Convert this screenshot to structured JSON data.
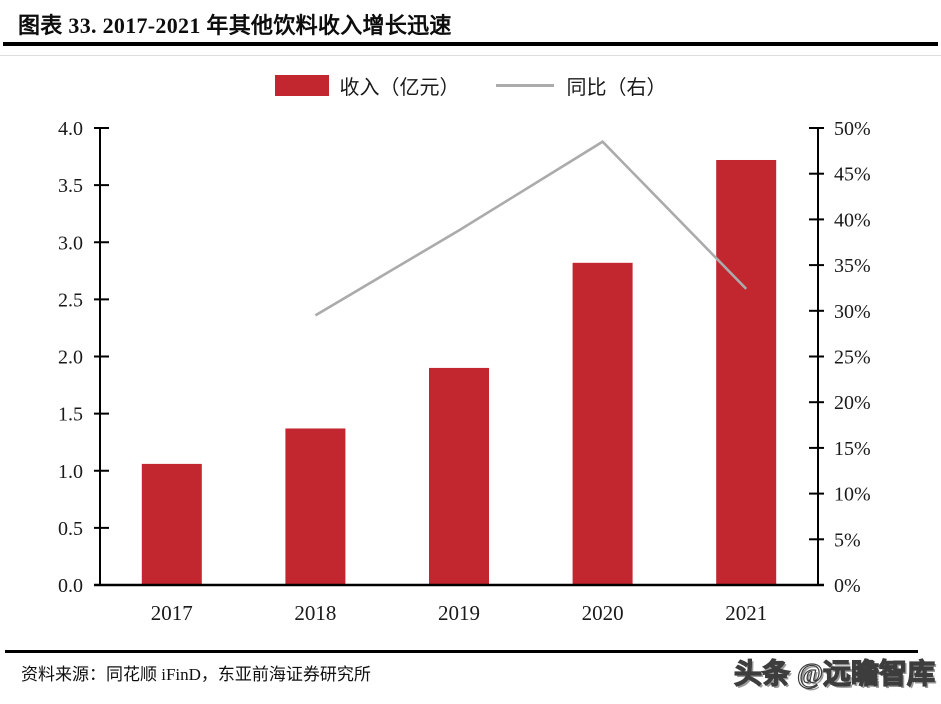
{
  "title": "图表 33. 2017-2021 年其他饮料收入增长迅速",
  "legend": {
    "bar_label": "收入（亿元）",
    "line_label": "同比（右）"
  },
  "footer": {
    "source": "资料来源：同花顺 iFinD，东亚前海证券研究所",
    "watermark": "头条 @远瞻智库"
  },
  "colors": {
    "bar": "#C2262E",
    "line": "#ABABAB",
    "axis": "#000000",
    "rule": "#000000"
  },
  "chart_data": {
    "type": "bar",
    "subtype": "bar-line-combo",
    "title": "2017-2021 年其他饮料收入增长迅速",
    "categories": [
      "2017",
      "2018",
      "2019",
      "2020",
      "2021"
    ],
    "series": [
      {
        "name": "收入（亿元）",
        "type": "bar",
        "axis": "left",
        "values": [
          1.06,
          1.37,
          1.9,
          2.82,
          3.72
        ]
      },
      {
        "name": "同比（右）",
        "type": "line",
        "axis": "right",
        "unit": "%",
        "values": [
          null,
          29.5,
          38.8,
          48.5,
          32.4
        ]
      }
    ],
    "left_axis": {
      "min": 0,
      "max": 4,
      "step": 0.5,
      "tick_labels": [
        "0.0",
        "0.5",
        "1.0",
        "1.5",
        "2.0",
        "2.5",
        "3.0",
        "3.5",
        "4.0"
      ]
    },
    "right_axis": {
      "min": 0,
      "max": 50,
      "step": 5,
      "tick_labels": [
        "0%",
        "5%",
        "10%",
        "15%",
        "20%",
        "25%",
        "30%",
        "35%",
        "40%",
        "45%",
        "50%"
      ]
    },
    "grid": false,
    "legend_position": "top-center"
  }
}
